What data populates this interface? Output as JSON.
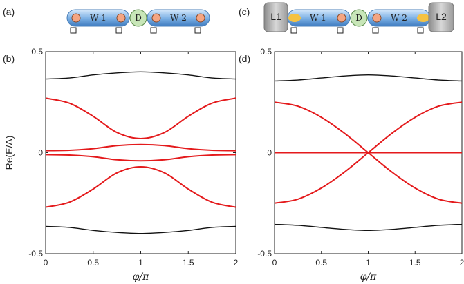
{
  "panel_labels": [
    "(a)",
    "(b)",
    "(c)",
    "(d)"
  ],
  "schematic_a": {
    "wire1": "W 1",
    "dot": "D",
    "wire2": "W 2"
  },
  "schematic_c": {
    "lead1": "L1",
    "wire1": "W 1",
    "dot": "D",
    "wire2": "W 2",
    "lead2": "L2"
  },
  "colors": {
    "red": "#e41a1c",
    "black": "#111111",
    "wire": "#6fa8dc",
    "dot": "#c8e6b8",
    "lead": "#9e9e9e",
    "majorana": "#f4a582",
    "yellow": "#f5c242"
  },
  "chart_data": [
    {
      "type": "line",
      "panel": "(b)",
      "xlabel": "φ/π",
      "ylabel": "Re(E/Δ)",
      "xlim": [
        0,
        2
      ],
      "ylim": [
        -0.5,
        0.5
      ],
      "xticks": [
        "0",
        "0.5",
        "1",
        "1.5",
        "2"
      ],
      "yticks": [
        "-0.5",
        "0",
        "0.5"
      ],
      "grid": false,
      "series": [
        {
          "color": "black",
          "x": [
            0,
            0.25,
            0.5,
            0.75,
            1,
            1.25,
            1.5,
            1.75,
            2
          ],
          "y": [
            0.365,
            0.37,
            0.385,
            0.395,
            0.4,
            0.395,
            0.385,
            0.37,
            0.365
          ]
        },
        {
          "color": "red",
          "x": [
            0,
            0.25,
            0.5,
            0.75,
            1,
            1.25,
            1.5,
            1.75,
            2
          ],
          "y": [
            0.27,
            0.245,
            0.18,
            0.1,
            0.07,
            0.1,
            0.18,
            0.245,
            0.27
          ]
        },
        {
          "color": "red",
          "x": [
            0,
            0.25,
            0.5,
            0.75,
            1,
            1.25,
            1.5,
            1.75,
            2
          ],
          "y": [
            0.01,
            0.012,
            0.02,
            0.035,
            0.04,
            0.035,
            0.02,
            0.012,
            0.01
          ]
        },
        {
          "color": "red",
          "x": [
            0,
            0.25,
            0.5,
            0.75,
            1,
            1.25,
            1.5,
            1.75,
            2
          ],
          "y": [
            -0.01,
            -0.012,
            -0.02,
            -0.035,
            -0.04,
            -0.035,
            -0.02,
            -0.012,
            -0.01
          ]
        },
        {
          "color": "red",
          "x": [
            0,
            0.25,
            0.5,
            0.75,
            1,
            1.25,
            1.5,
            1.75,
            2
          ],
          "y": [
            -0.27,
            -0.245,
            -0.18,
            -0.1,
            -0.07,
            -0.1,
            -0.18,
            -0.245,
            -0.27
          ]
        },
        {
          "color": "black",
          "x": [
            0,
            0.25,
            0.5,
            0.75,
            1,
            1.25,
            1.5,
            1.75,
            2
          ],
          "y": [
            -0.365,
            -0.37,
            -0.385,
            -0.395,
            -0.4,
            -0.395,
            -0.385,
            -0.37,
            -0.365
          ]
        }
      ]
    },
    {
      "type": "line",
      "panel": "(d)",
      "xlabel": "φ/π",
      "ylabel": "",
      "xlim": [
        0,
        2
      ],
      "ylim": [
        -0.5,
        0.5
      ],
      "xticks": [
        "0",
        "0.5",
        "1",
        "1.5",
        "2"
      ],
      "yticks": [
        "-0.5",
        "0",
        "0.5"
      ],
      "grid": false,
      "series": [
        {
          "color": "black",
          "x": [
            0,
            0.25,
            0.5,
            0.75,
            1,
            1.25,
            1.5,
            1.75,
            2
          ],
          "y": [
            0.355,
            0.36,
            0.37,
            0.38,
            0.385,
            0.38,
            0.37,
            0.36,
            0.355
          ]
        },
        {
          "color": "red",
          "x": [
            0,
            0.25,
            0.5,
            0.75,
            1,
            1.25,
            1.5,
            1.75,
            2
          ],
          "y": [
            0.25,
            0.23,
            0.175,
            0.095,
            0,
            -0.095,
            -0.175,
            -0.23,
            -0.25
          ]
        },
        {
          "color": "red",
          "x": [
            0,
            0.25,
            0.5,
            0.75,
            1,
            1.25,
            1.5,
            1.75,
            2
          ],
          "y": [
            -0.25,
            -0.23,
            -0.175,
            -0.095,
            0,
            0.095,
            0.175,
            0.23,
            0.25
          ]
        },
        {
          "color": "red",
          "x": [
            0,
            2
          ],
          "y": [
            0,
            0
          ]
        },
        {
          "color": "black",
          "x": [
            0,
            0.25,
            0.5,
            0.75,
            1,
            1.25,
            1.5,
            1.75,
            2
          ],
          "y": [
            -0.355,
            -0.36,
            -0.37,
            -0.38,
            -0.385,
            -0.38,
            -0.37,
            -0.36,
            -0.355
          ]
        }
      ]
    }
  ]
}
